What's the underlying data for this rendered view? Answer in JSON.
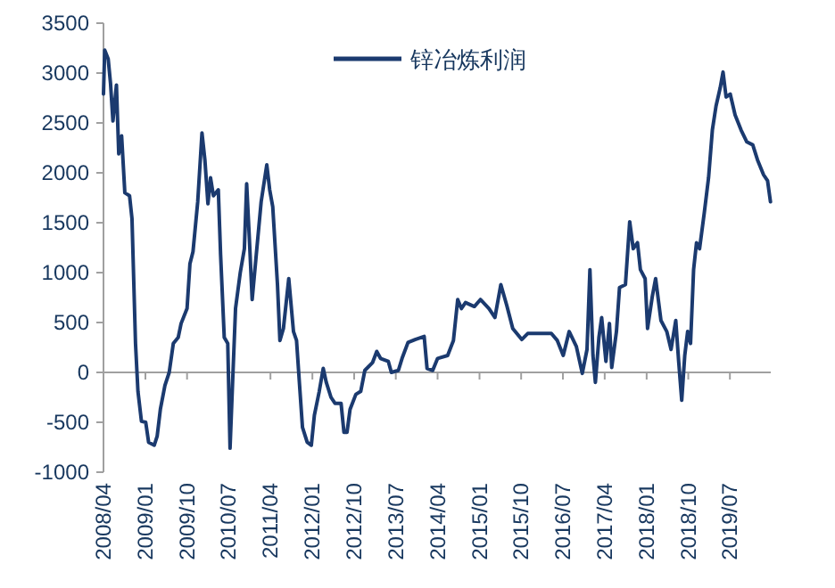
{
  "chart_data": {
    "type": "line",
    "x": [
      "2008-04-01",
      "2008-04-09",
      "2008-05-02",
      "2008-05-17",
      "2008-06-02",
      "2008-06-25",
      "2008-07-10",
      "2008-07-29",
      "2008-08-19",
      "2008-09-19",
      "2008-10-05",
      "2008-10-28",
      "2008-11-13",
      "2008-12-06",
      "2009-01-03",
      "2009-01-22",
      "2009-02-28",
      "2009-03-19",
      "2009-04-09",
      "2009-05-09",
      "2009-06-06",
      "2009-07-03",
      "2009-08-04",
      "2009-08-23",
      "2009-10-01",
      "2009-10-20",
      "2009-11-09",
      "2009-12-10",
      "2010-01-07",
      "2010-01-26",
      "2010-02-15",
      "2010-03-04",
      "2010-03-23",
      "2010-04-24",
      "2010-05-09",
      "2010-06-02",
      "2010-06-25",
      "2010-07-10",
      "2010-07-26",
      "2010-08-15",
      "2010-09-15",
      "2010-10-12",
      "2010-10-27",
      "2010-11-13",
      "2010-12-02",
      "2010-12-29",
      "2011-01-30",
      "2011-03-08",
      "2011-03-27",
      "2011-04-16",
      "2011-05-17",
      "2011-06-02",
      "2011-06-25",
      "2011-07-30",
      "2011-08-30",
      "2011-09-19",
      "2011-10-09",
      "2011-10-28",
      "2011-11-28",
      "2011-12-25",
      "2012-01-14",
      "2012-02-15",
      "2012-03-12",
      "2012-04-01",
      "2012-05-02",
      "2012-05-28",
      "2012-07-07",
      "2012-07-26",
      "2012-08-15",
      "2012-09-04",
      "2012-10-12",
      "2012-11-13",
      "2012-12-10",
      "2013-01-30",
      "2013-02-26",
      "2013-03-23",
      "2013-05-13",
      "2013-06-02",
      "2013-07-18",
      "2013-08-11",
      "2013-09-19",
      "2013-11-05",
      "2014-01-03",
      "2014-01-22",
      "2014-02-28",
      "2014-04-01",
      "2014-06-06",
      "2014-07-14",
      "2014-08-11",
      "2014-09-04",
      "2014-10-01",
      "2014-11-28",
      "2015-01-07",
      "2015-03-04",
      "2015-04-12",
      "2015-05-21",
      "2015-06-29",
      "2015-08-07",
      "2015-10-05",
      "2015-11-13",
      "2016-04-16",
      "2016-05-25",
      "2016-07-03",
      "2016-08-11",
      "2016-09-27",
      "2016-11-05",
      "2016-12-06",
      "2016-12-25",
      "2017-01-14",
      "2017-01-30",
      "2017-02-22",
      "2017-03-12",
      "2017-04-09",
      "2017-05-02",
      "2017-05-17",
      "2017-06-17",
      "2017-07-07",
      "2017-08-15",
      "2017-09-12",
      "2017-10-05",
      "2017-11-02",
      "2017-11-21",
      "2017-12-22",
      "2018-01-07",
      "2018-02-07",
      "2018-03-01",
      "2018-04-05",
      "2018-05-13",
      "2018-06-10",
      "2018-07-11",
      "2018-07-30",
      "2018-08-19",
      "2018-09-08",
      "2018-09-27",
      "2018-10-16",
      "2018-11-05",
      "2018-11-24",
      "2018-12-14",
      "2019-01-14",
      "2019-02-11",
      "2019-03-08",
      "2019-04-01",
      "2019-04-28",
      "2019-05-17",
      "2019-06-06",
      "2019-07-03",
      "2019-08-04",
      "2019-09-12",
      "2019-10-20",
      "2019-11-28",
      "2019-12-29",
      "2020-02-07",
      "2020-03-04",
      "2020-03-23"
    ],
    "series": [
      {
        "name": "锌冶炼利润",
        "color": "#1b3a6f",
        "values": [
          2790,
          3230,
          3140,
          2900,
          2520,
          2880,
          2190,
          2370,
          1800,
          1770,
          1540,
          290,
          -190,
          -490,
          -500,
          -700,
          -730,
          -640,
          -370,
          -130,
          0,
          290,
          350,
          490,
          640,
          1090,
          1210,
          1710,
          2400,
          2130,
          1690,
          1950,
          1770,
          1830,
          1180,
          350,
          290,
          -760,
          -130,
          640,
          1000,
          1240,
          1890,
          1360,
          730,
          1180,
          1710,
          2080,
          1830,
          1660,
          880,
          320,
          440,
          940,
          410,
          320,
          -130,
          -550,
          -700,
          -730,
          -430,
          -190,
          40,
          -100,
          -250,
          -310,
          -310,
          -600,
          -600,
          -370,
          -220,
          -190,
          20,
          100,
          210,
          140,
          110,
          0,
          20,
          140,
          300,
          330,
          360,
          40,
          20,
          140,
          170,
          320,
          730,
          640,
          700,
          660,
          730,
          640,
          550,
          880,
          670,
          440,
          330,
          390,
          390,
          320,
          170,
          410,
          260,
          -10,
          230,
          1030,
          170,
          -100,
          350,
          550,
          110,
          490,
          50,
          410,
          850,
          880,
          1510,
          1240,
          1300,
          1030,
          940,
          440,
          760,
          940,
          520,
          410,
          230,
          520,
          110,
          -280,
          170,
          410,
          290,
          1030,
          1300,
          1240,
          1600,
          1950,
          2430,
          2670,
          2850,
          3010,
          2760,
          2790,
          2580,
          2430,
          2310,
          2280,
          2130,
          1980,
          1920,
          1710
        ]
      }
    ],
    "xlim": [
      "2008-04-01",
      "2020-03-25"
    ],
    "xticks": [
      {
        "value": "2008-04-01",
        "label": "2008/04"
      },
      {
        "value": "2009-01-01",
        "label": "2009/01"
      },
      {
        "value": "2009-10-01",
        "label": "2009/10"
      },
      {
        "value": "2010-07-01",
        "label": "2010/07"
      },
      {
        "value": "2011-04-01",
        "label": "2011/04"
      },
      {
        "value": "2012-01-01",
        "label": "2012/01"
      },
      {
        "value": "2012-10-01",
        "label": "2012/10"
      },
      {
        "value": "2013-07-01",
        "label": "2013/07"
      },
      {
        "value": "2014-04-01",
        "label": "2014/04"
      },
      {
        "value": "2015-01-01",
        "label": "2015/01"
      },
      {
        "value": "2015-10-01",
        "label": "2015/10"
      },
      {
        "value": "2016-07-01",
        "label": "2016/07"
      },
      {
        "value": "2017-04-01",
        "label": "2017/04"
      },
      {
        "value": "2018-01-01",
        "label": "2018/01"
      },
      {
        "value": "2018-10-01",
        "label": "2018/10"
      },
      {
        "value": "2019-07-01",
        "label": "2019/07"
      }
    ],
    "ylim": [
      -1000,
      3500
    ],
    "yticks": [
      -1000,
      -500,
      0,
      500,
      1000,
      1500,
      2000,
      2500,
      3000,
      3500
    ],
    "legend": "top"
  }
}
